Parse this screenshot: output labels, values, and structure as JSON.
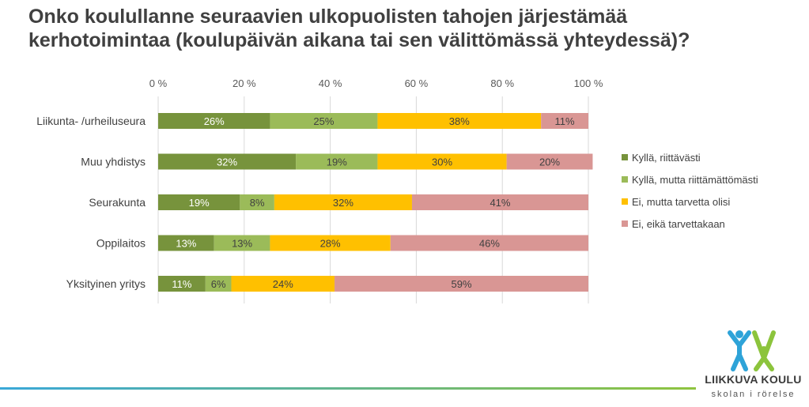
{
  "title": "Onko koulullanne seuraavien ulkopuolisten tahojen järjestämää kerhotoimintaa (koulupäivän aikana tai sen välittömässä yhteydessä)?",
  "logo": {
    "name": "LIIKKUVA KOULU",
    "subtitle": "skolan i rörelse"
  },
  "chart_data": {
    "type": "bar",
    "orientation": "horizontal",
    "stacked": "percent",
    "categories": [
      "Liikunta- /urheiluseura",
      "Muu yhdistys",
      "Seurakunta",
      "Oppilaitos",
      "Yksityinen yritys"
    ],
    "series": [
      {
        "name": "Kyllä, riittävästi",
        "color": "#77933c",
        "label_color": "#ffffff",
        "values": [
          26,
          32,
          19,
          13,
          11
        ]
      },
      {
        "name": "Kyllä, mutta riittämättömästi",
        "color": "#9bbb59",
        "label_color": "#404040",
        "values": [
          25,
          19,
          8,
          13,
          6
        ]
      },
      {
        "name": "Ei, mutta tarvetta olisi",
        "color": "#ffc000",
        "label_color": "#404040",
        "values": [
          38,
          30,
          32,
          28,
          24
        ]
      },
      {
        "name": "Ei, eikä tarvettakaan",
        "color": "#d99694",
        "label_color": "#404040",
        "values": [
          11,
          20,
          41,
          46,
          59
        ]
      }
    ],
    "xlim": [
      0,
      100
    ],
    "xticks": [
      "0 %",
      "20 %",
      "40 %",
      "60 %",
      "80 %",
      "100 %"
    ],
    "axis_position": "top",
    "grid": true,
    "legend_position": "right"
  }
}
